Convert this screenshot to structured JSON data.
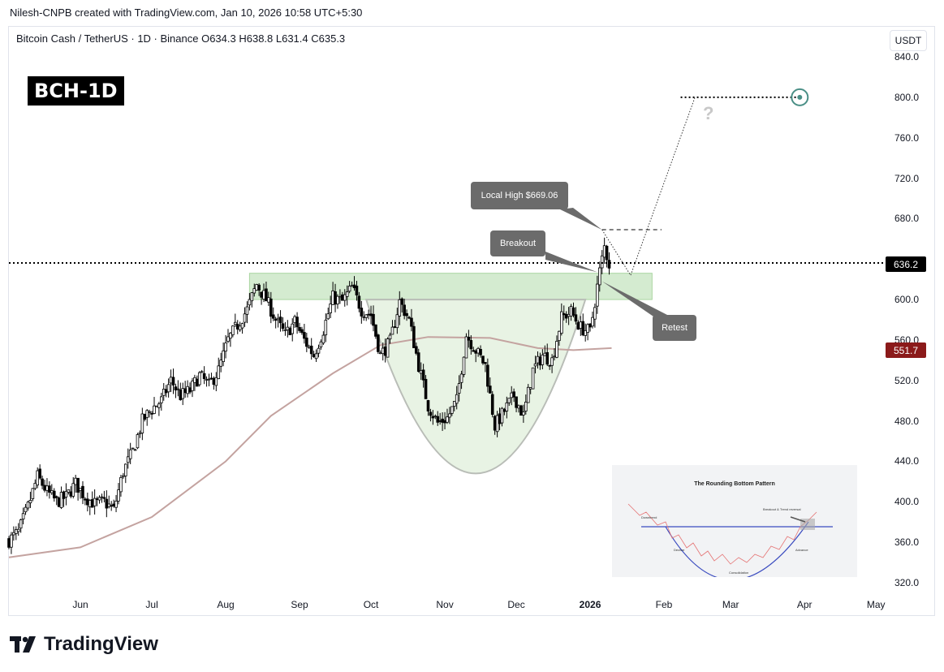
{
  "header_note": "Nilesh-CNPB created with TradingView.com, Jan 10, 2026 10:58 UTC+5:30",
  "symbol_line": "Bitcoin Cash / TetherUS · 1D · Binance  O634.3  H638.8  L631.4  C635.3",
  "currency_button": "USDT",
  "badge": "BCH-1D",
  "callouts": {
    "local_high": "Local High $669.06",
    "breakout": "Breakout",
    "retest": "Retest"
  },
  "question_mark": "?",
  "price_labels": {
    "current": "636.2",
    "moving_average": "551.7"
  },
  "colors": {
    "up_candle": "#ffffff",
    "down_candle": "#000000",
    "moving_average": "#c4a3a0",
    "zone_fill": "#cde8c8",
    "bowl_fill": "#e8f3e4",
    "ma_label": "#8b1a1a",
    "target_circle": "#4a8f86"
  },
  "inset": {
    "title": "The Rounding Bottom Pattern",
    "labels": {
      "downtrend": "Downtrend",
      "decline": "Decline",
      "consolidation": "Consolidation",
      "advance": "Advance",
      "breakout": "Breakout & Trend reversal"
    }
  },
  "logo_text": "TradingView",
  "chart_data": {
    "type": "candlestick",
    "title": "Bitcoin Cash / TetherUS · 1D · Binance",
    "xlabel": "",
    "ylabel": "",
    "unit": "USDT",
    "y_ticks": [
      840.0,
      800.0,
      760.0,
      720.0,
      680.0,
      640.0,
      600.0,
      560.0,
      520.0,
      480.0,
      440.0,
      400.0,
      360.0,
      320.0
    ],
    "y_tick_labels": [
      "840.0",
      "800.0",
      "760.0",
      "720.0",
      "680.0",
      "",
      "600.0",
      "560.0",
      "520.0",
      "480.0",
      "440.0",
      "400.0",
      "360.0",
      "320.0"
    ],
    "ylim": [
      308,
      860
    ],
    "x_ticks": [
      {
        "label": "Jun",
        "date": "2025-06-01",
        "bold": false
      },
      {
        "label": "Jul",
        "date": "2025-07-01",
        "bold": false
      },
      {
        "label": "Aug",
        "date": "2025-08-01",
        "bold": false
      },
      {
        "label": "Sep",
        "date": "2025-09-01",
        "bold": false
      },
      {
        "label": "Oct",
        "date": "2025-10-01",
        "bold": false
      },
      {
        "label": "Nov",
        "date": "2025-11-01",
        "bold": false
      },
      {
        "label": "Dec",
        "date": "2025-12-01",
        "bold": false
      },
      {
        "label": "2026",
        "date": "2026-01-01",
        "bold": true
      },
      {
        "label": "Feb",
        "date": "2026-02-01",
        "bold": false
      },
      {
        "label": "Mar",
        "date": "2026-03-01",
        "bold": false
      },
      {
        "label": "Apr",
        "date": "2026-04-01",
        "bold": false
      },
      {
        "label": "May",
        "date": "2026-05-01",
        "bold": false
      }
    ],
    "xlim": [
      "2025-05-02",
      "2026-05-04"
    ],
    "ohlc_last": {
      "open": 634.3,
      "high": 638.8,
      "low": 631.4,
      "close": 635.3
    },
    "close_series": [
      [
        "2025-05-02",
        362
      ],
      [
        "2025-05-06",
        370
      ],
      [
        "2025-05-10",
        395
      ],
      [
        "2025-05-14",
        425
      ],
      [
        "2025-05-18",
        410
      ],
      [
        "2025-05-22",
        400
      ],
      [
        "2025-05-26",
        405
      ],
      [
        "2025-05-30",
        418
      ],
      [
        "2025-06-03",
        405
      ],
      [
        "2025-06-07",
        398
      ],
      [
        "2025-06-11",
        400
      ],
      [
        "2025-06-15",
        392
      ],
      [
        "2025-06-19",
        430
      ],
      [
        "2025-06-23",
        450
      ],
      [
        "2025-06-27",
        480
      ],
      [
        "2025-07-01",
        492
      ],
      [
        "2025-07-05",
        500
      ],
      [
        "2025-07-09",
        520
      ],
      [
        "2025-07-13",
        505
      ],
      [
        "2025-07-17",
        510
      ],
      [
        "2025-07-21",
        525
      ],
      [
        "2025-07-25",
        515
      ],
      [
        "2025-07-29",
        530
      ],
      [
        "2025-08-02",
        560
      ],
      [
        "2025-08-06",
        575
      ],
      [
        "2025-08-10",
        590
      ],
      [
        "2025-08-14",
        615
      ],
      [
        "2025-08-18",
        600
      ],
      [
        "2025-08-22",
        580
      ],
      [
        "2025-08-26",
        565
      ],
      [
        "2025-08-30",
        578
      ],
      [
        "2025-09-03",
        560
      ],
      [
        "2025-09-07",
        545
      ],
      [
        "2025-09-11",
        570
      ],
      [
        "2025-09-15",
        602
      ],
      [
        "2025-09-19",
        598
      ],
      [
        "2025-09-23",
        612
      ],
      [
        "2025-09-27",
        590
      ],
      [
        "2025-10-01",
        585
      ],
      [
        "2025-10-05",
        545
      ],
      [
        "2025-10-09",
        558
      ],
      [
        "2025-10-13",
        598
      ],
      [
        "2025-10-17",
        580
      ],
      [
        "2025-10-21",
        535
      ],
      [
        "2025-10-25",
        495
      ],
      [
        "2025-10-29",
        478
      ],
      [
        "2025-11-02",
        483
      ],
      [
        "2025-11-06",
        500
      ],
      [
        "2025-11-10",
        565
      ],
      [
        "2025-11-14",
        550
      ],
      [
        "2025-11-18",
        535
      ],
      [
        "2025-11-22",
        475
      ],
      [
        "2025-11-26",
        490
      ],
      [
        "2025-11-30",
        505
      ],
      [
        "2025-12-04",
        485
      ],
      [
        "2025-12-08",
        530
      ],
      [
        "2025-12-12",
        545
      ],
      [
        "2025-12-16",
        540
      ],
      [
        "2025-12-20",
        582
      ],
      [
        "2025-12-24",
        588
      ],
      [
        "2025-12-28",
        572
      ],
      [
        "2026-01-01",
        568
      ],
      [
        "2026-01-03",
        598
      ],
      [
        "2026-01-05",
        628
      ],
      [
        "2026-01-07",
        652
      ],
      [
        "2026-01-09",
        635
      ]
    ],
    "moving_average": [
      [
        "2025-05-02",
        345
      ],
      [
        "2025-06-01",
        355
      ],
      [
        "2025-07-01",
        385
      ],
      [
        "2025-08-01",
        440
      ],
      [
        "2025-08-20",
        485
      ],
      [
        "2025-09-15",
        527
      ],
      [
        "2025-10-05",
        555
      ],
      [
        "2025-10-25",
        563
      ],
      [
        "2025-11-20",
        562
      ],
      [
        "2025-12-10",
        552
      ],
      [
        "2025-12-25",
        550
      ],
      [
        "2026-01-10",
        552
      ]
    ],
    "moving_average_last": 551.7,
    "current_price": 636.2,
    "zones": [
      {
        "type": "resistance-support band",
        "from": 600,
        "to": 626,
        "start": "2025-08-11",
        "end": "2026-01-27"
      }
    ],
    "levels": [
      {
        "name": "current price line",
        "value": 636.2,
        "style": "dotted"
      },
      {
        "name": "local high",
        "value": 669.06,
        "style": "dashed",
        "start": "2026-01-06",
        "end": "2026-01-31"
      },
      {
        "name": "target",
        "value": 800.0,
        "style": "dotted",
        "start": "2026-02-08",
        "end": "2026-03-30"
      }
    ],
    "projection": [
      {
        "date": "2026-01-06",
        "value": 669.06
      },
      {
        "date": "2026-01-18",
        "value": 624
      },
      {
        "date": "2026-02-14",
        "value": 800
      }
    ],
    "rounding_bottom_low": 428,
    "grid": false,
    "legend": "none"
  }
}
